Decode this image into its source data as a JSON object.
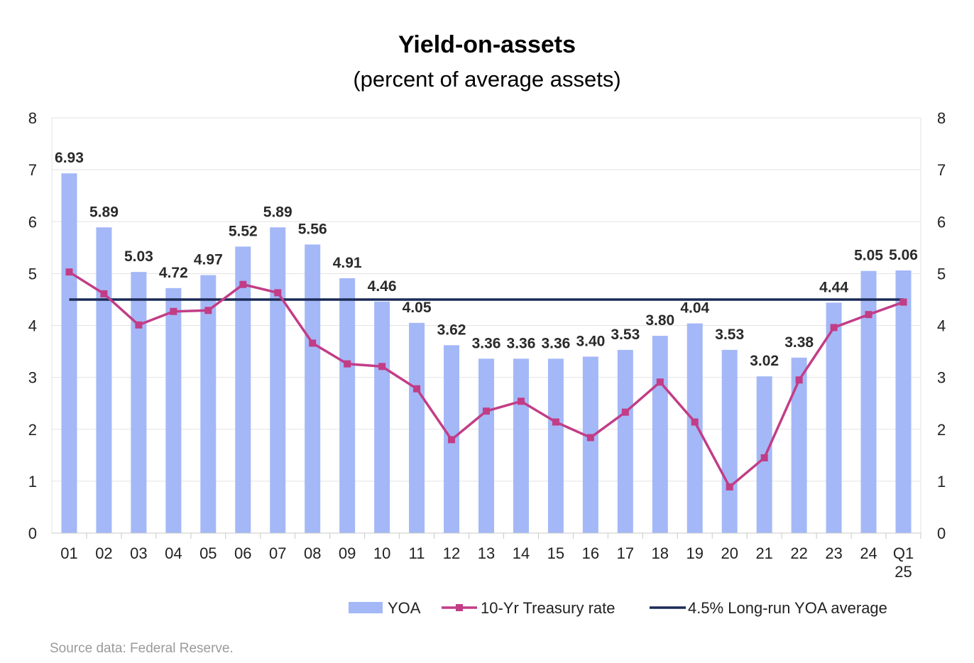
{
  "chart_data": {
    "type": "bar",
    "title": "Yield-on-assets",
    "subtitle": "(percent of average assets)",
    "categories": [
      "01",
      "02",
      "03",
      "04",
      "05",
      "06",
      "07",
      "08",
      "09",
      "10",
      "11",
      "12",
      "13",
      "14",
      "15",
      "16",
      "17",
      "18",
      "19",
      "20",
      "21",
      "22",
      "23",
      "24",
      "Q1 25"
    ],
    "series": [
      {
        "name": "YOA",
        "kind": "bar",
        "color": "#a4b8f7",
        "values": [
          6.93,
          5.89,
          5.03,
          4.72,
          4.97,
          5.52,
          5.89,
          5.56,
          4.91,
          4.46,
          4.05,
          3.62,
          3.36,
          3.36,
          3.36,
          3.4,
          3.53,
          3.8,
          4.04,
          3.53,
          3.02,
          3.38,
          4.44,
          5.05,
          5.06
        ],
        "labels": [
          "6.93",
          "5.89",
          "5.03",
          "4.72",
          "4.97",
          "5.52",
          "5.89",
          "5.56",
          "4.91",
          "4.46",
          "4.05",
          "3.62",
          "3.36",
          "3.36",
          "3.36",
          "3.40",
          "3.53",
          "3.80",
          "4.04",
          "3.53",
          "3.02",
          "3.38",
          "4.44",
          "5.05",
          "5.06"
        ]
      },
      {
        "name": "10-Yr Treasury rate",
        "kind": "line",
        "color": "#c23d86",
        "marker": "square",
        "values": [
          5.03,
          4.61,
          4.01,
          4.27,
          4.29,
          4.79,
          4.63,
          3.66,
          3.26,
          3.21,
          2.78,
          1.8,
          2.35,
          2.54,
          2.14,
          1.84,
          2.33,
          2.91,
          2.14,
          0.89,
          1.45,
          2.95,
          3.96,
          4.21,
          4.45
        ]
      },
      {
        "name": "4.5% Long-run YOA average",
        "kind": "hline",
        "color": "#1c2b57",
        "value": 4.5
      }
    ],
    "ylim": [
      0,
      8
    ],
    "yticks": [
      "0",
      "1",
      "2",
      "3",
      "4",
      "5",
      "6",
      "7",
      "8"
    ],
    "y2ticks": [
      "0",
      "1",
      "2",
      "3",
      "4",
      "5",
      "6",
      "7",
      "8"
    ],
    "grid": true,
    "legend_position": "bottom-right",
    "xlabel": "",
    "ylabel": ""
  },
  "footer": {
    "source": "Source data: Federal Reserve."
  }
}
